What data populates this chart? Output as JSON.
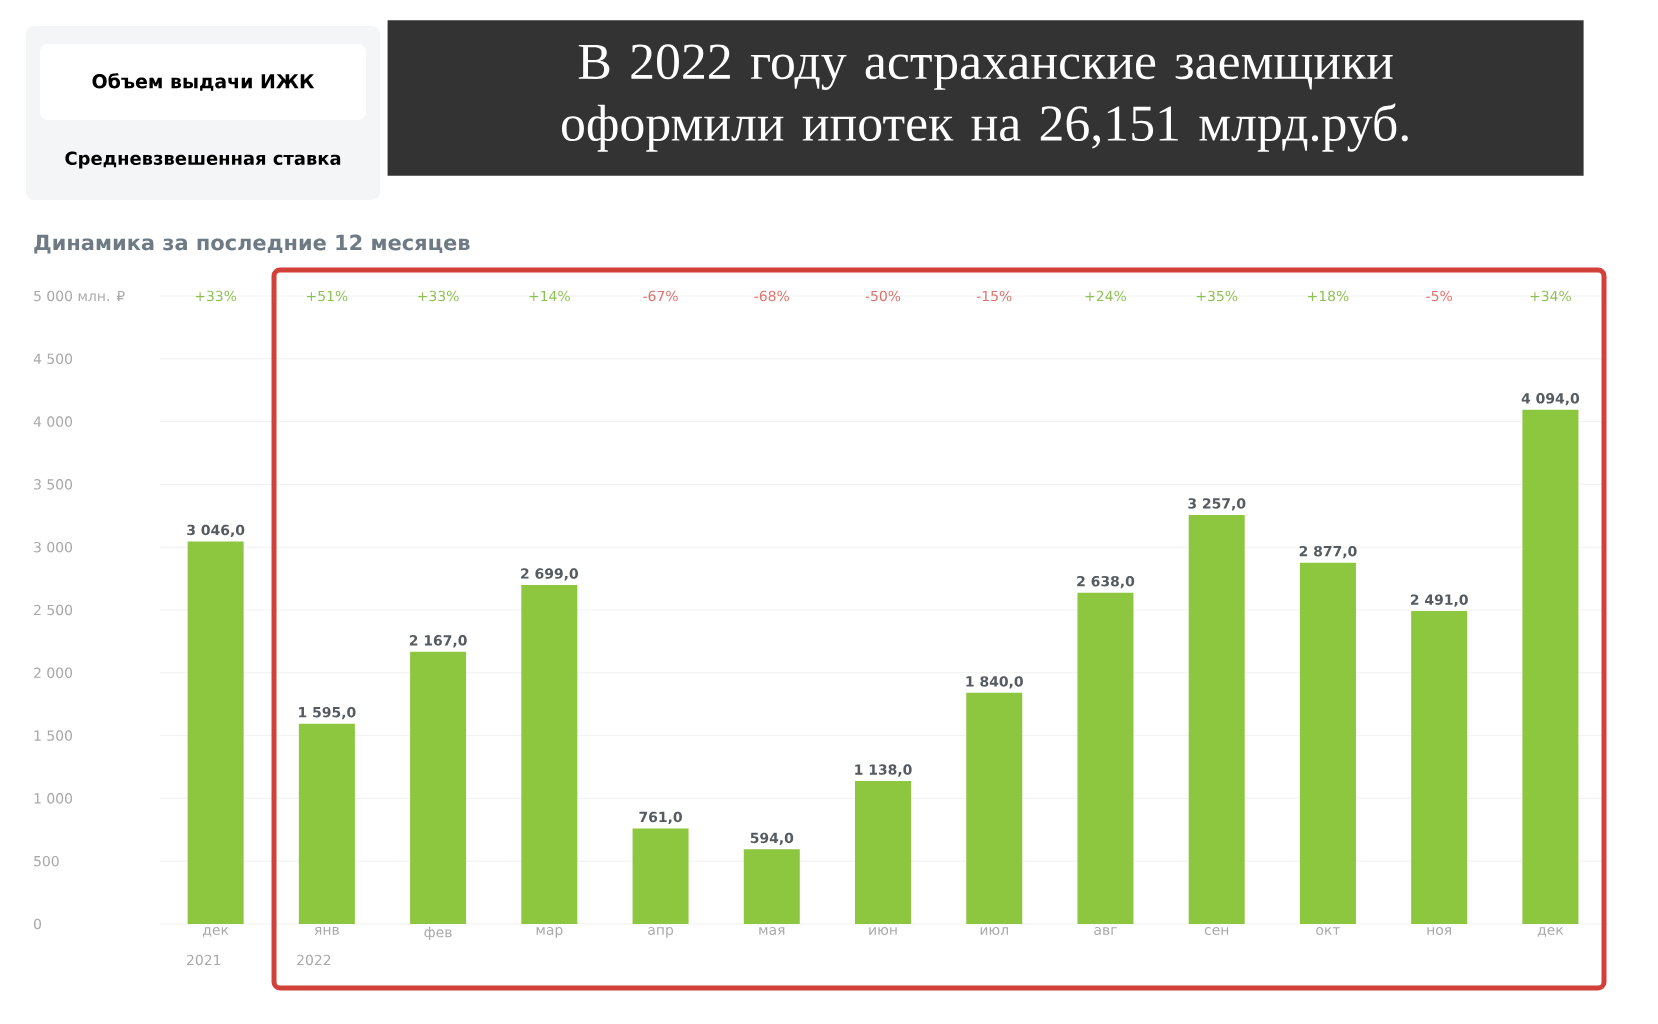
{
  "chart_data": {
    "type": "bar",
    "title": "В 2022 году астраханские заемщики оформили ипотек на 26,151 млрд.руб.",
    "subtitle": "Динамика за последние 12 месяцев",
    "categories": [
      "дек",
      "янв",
      "фев",
      "мар",
      "апр",
      "мая",
      "июн",
      "июл",
      "авг",
      "сен",
      "окт",
      "ноя",
      "дек"
    ],
    "values": [
      3046,
      1595,
      2167,
      2699,
      761,
      594,
      1138,
      1840,
      2638,
      3257,
      2877,
      2491,
      4094
    ],
    "value_labels": [
      "3 046,0",
      "1 595,0",
      "2 167,0",
      "2 699,0",
      "761,0",
      "594,0",
      "1 138,0",
      "1 840,0",
      "2 638,0",
      "3 257,0",
      "2 877,0",
      "2 491,0",
      "4 094,0"
    ],
    "color": "#8dc63f",
    "ylim": [
      0,
      5000
    ],
    "yticks": [
      0,
      500,
      {
        "value": 1000,
        "label": "1 000"
      },
      {
        "value": 1500,
        "label": "1 500"
      },
      {
        "value": 2000,
        "label": "2 000"
      },
      {
        "value": 2500,
        "label": "2 500"
      },
      {
        "value": 3000,
        "label": "3 000"
      },
      {
        "value": 3500,
        "label": "3 500"
      },
      {
        "value": 4000,
        "label": "4 000"
      },
      {
        "value": 4500,
        "label": "4 500"
      },
      {
        "value": 5000,
        "label": "5 000 млн. ₽"
      }
    ],
    "grid": "y",
    "annotations": [
      "Объем выдачи ИЖК",
      "Средневзвешенная ставка",
      "+33%",
      "+51%",
      "+33%",
      "+14%",
      "-67%",
      "-68%",
      "-50%",
      "-15%",
      "+24%",
      "+35%",
      "+18%",
      "-5%",
      "+34%",
      "2021",
      "2022"
    ]
  }
}
